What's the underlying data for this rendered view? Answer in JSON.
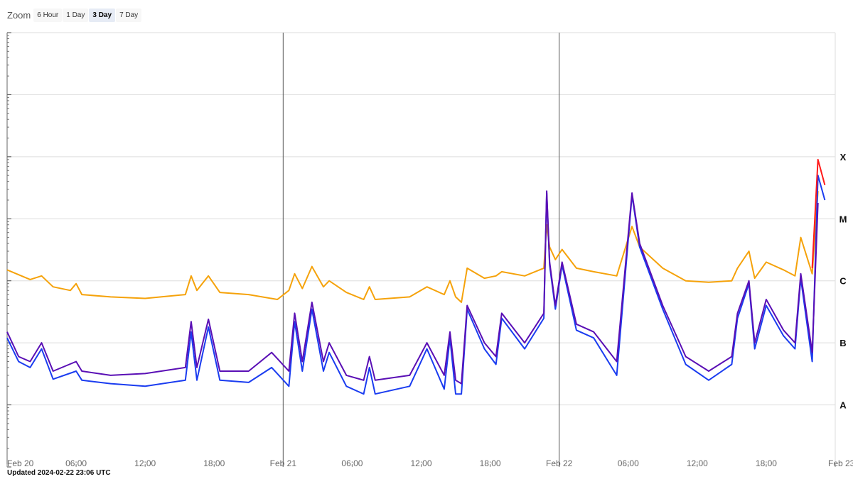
{
  "zoom": {
    "label": "Zoom",
    "buttons": [
      "6 Hour",
      "1 Day",
      "3 Day",
      "7 Day"
    ],
    "active": "3 Day"
  },
  "updated": "Updated 2024-02-22 23:06 UTC",
  "colors": {
    "long_channel": "#f5a20a",
    "short_channel": "#5a0fb5",
    "short_channel_2": "#1a3cf0",
    "latest_long": "#ff1a1a",
    "grid": "#dddddd",
    "day_line": "#555555"
  },
  "chart_data": {
    "type": "line",
    "x_range": [
      "2024-02-20T00:00",
      "2024-02-23T00:00"
    ],
    "y_scale": "log",
    "ylim": [
      1e-09,
      0.01
    ],
    "grid": true,
    "x_ticks": [
      {
        "t": "2024-02-20T00:00",
        "label": "Feb 20"
      },
      {
        "t": "2024-02-20T06:00",
        "label": "06:00"
      },
      {
        "t": "2024-02-20T12:00",
        "label": "12:00"
      },
      {
        "t": "2024-02-20T18:00",
        "label": "18:00"
      },
      {
        "t": "2024-02-21T00:00",
        "label": "Feb 21"
      },
      {
        "t": "2024-02-21T06:00",
        "label": "06:00"
      },
      {
        "t": "2024-02-21T12:00",
        "label": "12:00"
      },
      {
        "t": "2024-02-21T18:00",
        "label": "18:00"
      },
      {
        "t": "2024-02-22T00:00",
        "label": "Feb 22"
      },
      {
        "t": "2024-02-22T06:00",
        "label": "06:00"
      },
      {
        "t": "2024-02-22T12:00",
        "label": "12:00"
      },
      {
        "t": "2024-02-22T18:00",
        "label": "18:00"
      },
      {
        "t": "2024-02-23T00:00",
        "label": "Feb 23"
      }
    ],
    "day_lines": [
      "2024-02-21T00:00",
      "2024-02-22T00:00"
    ],
    "class_labels": [
      {
        "label": "X",
        "value": 0.0001
      },
      {
        "label": "M",
        "value": 1e-05
      },
      {
        "label": "C",
        "value": 1e-06
      },
      {
        "label": "B",
        "value": 1e-07
      },
      {
        "label": "A",
        "value": 1e-08
      }
    ],
    "series": [
      {
        "key": "long",
        "points": [
          [
            "2024-02-20T00:00",
            1.5e-06
          ],
          [
            "2024-02-20T02:00",
            1.05e-06
          ],
          [
            "2024-02-20T03:00",
            1.2e-06
          ],
          [
            "2024-02-20T04:00",
            8e-07
          ],
          [
            "2024-02-20T05:30",
            7e-07
          ],
          [
            "2024-02-20T06:00",
            9e-07
          ],
          [
            "2024-02-20T06:30",
            6e-07
          ],
          [
            "2024-02-20T09:00",
            5.5e-07
          ],
          [
            "2024-02-20T12:00",
            5.2e-07
          ],
          [
            "2024-02-20T15:30",
            6e-07
          ],
          [
            "2024-02-20T16:00",
            1.2e-06
          ],
          [
            "2024-02-20T16:30",
            7e-07
          ],
          [
            "2024-02-20T17:30",
            1.2e-06
          ],
          [
            "2024-02-20T18:30",
            6.5e-07
          ],
          [
            "2024-02-20T21:00",
            6e-07
          ],
          [
            "2024-02-20T23:30",
            5e-07
          ],
          [
            "2024-02-21T00:30",
            7e-07
          ],
          [
            "2024-02-21T01:00",
            1.3e-06
          ],
          [
            "2024-02-21T01:40",
            7.5e-07
          ],
          [
            "2024-02-21T02:30",
            1.7e-06
          ],
          [
            "2024-02-21T03:30",
            8e-07
          ],
          [
            "2024-02-21T04:00",
            1e-06
          ],
          [
            "2024-02-21T05:30",
            6.5e-07
          ],
          [
            "2024-02-21T07:00",
            5e-07
          ],
          [
            "2024-02-21T07:30",
            8e-07
          ],
          [
            "2024-02-21T08:00",
            5e-07
          ],
          [
            "2024-02-21T11:00",
            5.5e-07
          ],
          [
            "2024-02-21T12:30",
            8e-07
          ],
          [
            "2024-02-21T14:00",
            6e-07
          ],
          [
            "2024-02-21T14:30",
            1e-06
          ],
          [
            "2024-02-21T15:00",
            5.5e-07
          ],
          [
            "2024-02-21T15:30",
            4.5e-07
          ],
          [
            "2024-02-21T16:00",
            1.6e-06
          ],
          [
            "2024-02-21T17:30",
            1.1e-06
          ],
          [
            "2024-02-21T18:30",
            1.2e-06
          ],
          [
            "2024-02-21T19:00",
            1.4e-06
          ],
          [
            "2024-02-21T21:00",
            1.2e-06
          ],
          [
            "2024-02-21T22:40",
            1.6e-06
          ],
          [
            "2024-02-21T22:55",
            8e-06
          ],
          [
            "2024-02-21T23:10",
            3.5e-06
          ],
          [
            "2024-02-21T23:40",
            2.2e-06
          ],
          [
            "2024-02-22T00:15",
            3.2e-06
          ],
          [
            "2024-02-22T01:30",
            1.6e-06
          ],
          [
            "2024-02-22T03:00",
            1.4e-06
          ],
          [
            "2024-02-22T05:00",
            1.2e-06
          ],
          [
            "2024-02-22T06:20",
            7.5e-06
          ],
          [
            "2024-02-22T07:00",
            3.5e-06
          ],
          [
            "2024-02-22T09:00",
            1.6e-06
          ],
          [
            "2024-02-22T11:00",
            1e-06
          ],
          [
            "2024-02-22T13:00",
            9.5e-07
          ],
          [
            "2024-02-22T15:00",
            1e-06
          ],
          [
            "2024-02-22T15:30",
            1.6e-06
          ],
          [
            "2024-02-22T16:30",
            3e-06
          ],
          [
            "2024-02-22T17:00",
            1.1e-06
          ],
          [
            "2024-02-22T18:00",
            2e-06
          ],
          [
            "2024-02-22T19:30",
            1.5e-06
          ],
          [
            "2024-02-22T20:30",
            1.2e-06
          ],
          [
            "2024-02-22T21:00",
            5e-06
          ],
          [
            "2024-02-22T22:00",
            1.3e-06
          ],
          [
            "2024-02-22T22:30",
            2.8e-05
          ]
        ]
      },
      {
        "key": "short",
        "points": [
          [
            "2024-02-20T00:00",
            1.5e-07
          ],
          [
            "2024-02-20T01:00",
            6e-08
          ],
          [
            "2024-02-20T02:00",
            5e-08
          ],
          [
            "2024-02-20T03:00",
            1e-07
          ],
          [
            "2024-02-20T04:00",
            3.5e-08
          ],
          [
            "2024-02-20T06:00",
            5e-08
          ],
          [
            "2024-02-20T06:30",
            3.5e-08
          ],
          [
            "2024-02-20T09:00",
            3e-08
          ],
          [
            "2024-02-20T12:00",
            3.2e-08
          ],
          [
            "2024-02-20T15:30",
            4e-08
          ],
          [
            "2024-02-20T16:00",
            2.2e-07
          ],
          [
            "2024-02-20T16:30",
            4e-08
          ],
          [
            "2024-02-20T17:30",
            2.4e-07
          ],
          [
            "2024-02-20T18:30",
            3.5e-08
          ],
          [
            "2024-02-20T21:00",
            3.5e-08
          ],
          [
            "2024-02-20T23:00",
            7e-08
          ],
          [
            "2024-02-21T00:30",
            3.5e-08
          ],
          [
            "2024-02-21T01:00",
            3e-07
          ],
          [
            "2024-02-21T01:40",
            5e-08
          ],
          [
            "2024-02-21T02:30",
            4.5e-07
          ],
          [
            "2024-02-21T03:30",
            5e-08
          ],
          [
            "2024-02-21T04:00",
            1e-07
          ],
          [
            "2024-02-21T05:30",
            3e-08
          ],
          [
            "2024-02-21T07:00",
            2.5e-08
          ],
          [
            "2024-02-21T07:30",
            6e-08
          ],
          [
            "2024-02-21T08:00",
            2.5e-08
          ],
          [
            "2024-02-21T11:00",
            3e-08
          ],
          [
            "2024-02-21T12:30",
            1e-07
          ],
          [
            "2024-02-21T14:00",
            3e-08
          ],
          [
            "2024-02-21T14:30",
            1.5e-07
          ],
          [
            "2024-02-21T15:00",
            2.5e-08
          ],
          [
            "2024-02-21T15:30",
            2.2e-08
          ],
          [
            "2024-02-21T16:00",
            4e-07
          ],
          [
            "2024-02-21T17:30",
            1e-07
          ],
          [
            "2024-02-21T18:30",
            6e-08
          ],
          [
            "2024-02-21T19:00",
            3e-07
          ],
          [
            "2024-02-21T21:00",
            1e-07
          ],
          [
            "2024-02-21T22:40",
            3e-07
          ],
          [
            "2024-02-21T22:55",
            2.8e-05
          ],
          [
            "2024-02-21T23:10",
            2e-06
          ],
          [
            "2024-02-21T23:40",
            4e-07
          ],
          [
            "2024-02-22T00:15",
            2e-06
          ],
          [
            "2024-02-22T01:30",
            2e-07
          ],
          [
            "2024-02-22T03:00",
            1.5e-07
          ],
          [
            "2024-02-22T05:00",
            5e-08
          ],
          [
            "2024-02-22T06:20",
            2.6e-05
          ],
          [
            "2024-02-22T07:00",
            4e-06
          ],
          [
            "2024-02-22T09:00",
            4e-07
          ],
          [
            "2024-02-22T11:00",
            6e-08
          ],
          [
            "2024-02-22T13:00",
            3.5e-08
          ],
          [
            "2024-02-22T15:00",
            6e-08
          ],
          [
            "2024-02-22T15:30",
            3e-07
          ],
          [
            "2024-02-22T16:30",
            1e-06
          ],
          [
            "2024-02-22T17:00",
            1e-07
          ],
          [
            "2024-02-22T18:00",
            5e-07
          ],
          [
            "2024-02-22T19:30",
            1.6e-07
          ],
          [
            "2024-02-22T20:30",
            1e-07
          ],
          [
            "2024-02-22T21:00",
            1.3e-06
          ],
          [
            "2024-02-22T22:00",
            7e-08
          ],
          [
            "2024-02-22T22:30",
            1.8e-05
          ]
        ]
      },
      {
        "key": "short2",
        "points": [
          [
            "2024-02-20T00:00",
            1.2e-07
          ],
          [
            "2024-02-20T01:00",
            5e-08
          ],
          [
            "2024-02-20T02:00",
            4e-08
          ],
          [
            "2024-02-20T03:00",
            8e-08
          ],
          [
            "2024-02-20T04:00",
            2.6e-08
          ],
          [
            "2024-02-20T06:00",
            3.5e-08
          ],
          [
            "2024-02-20T06:30",
            2.5e-08
          ],
          [
            "2024-02-20T09:00",
            2.2e-08
          ],
          [
            "2024-02-20T12:00",
            2e-08
          ],
          [
            "2024-02-20T15:30",
            2.5e-08
          ],
          [
            "2024-02-20T16:00",
            1.5e-07
          ],
          [
            "2024-02-20T16:30",
            2.5e-08
          ],
          [
            "2024-02-20T17:30",
            1.8e-07
          ],
          [
            "2024-02-20T18:30",
            2.5e-08
          ],
          [
            "2024-02-20T21:00",
            2.3e-08
          ],
          [
            "2024-02-20T23:00",
            4e-08
          ],
          [
            "2024-02-21T00:30",
            2e-08
          ],
          [
            "2024-02-21T01:00",
            2.2e-07
          ],
          [
            "2024-02-21T01:40",
            3.5e-08
          ],
          [
            "2024-02-21T02:30",
            3.5e-07
          ],
          [
            "2024-02-21T03:30",
            3.5e-08
          ],
          [
            "2024-02-21T04:00",
            7e-08
          ],
          [
            "2024-02-21T05:30",
            2e-08
          ],
          [
            "2024-02-21T07:00",
            1.5e-08
          ],
          [
            "2024-02-21T07:30",
            4e-08
          ],
          [
            "2024-02-21T08:00",
            1.5e-08
          ],
          [
            "2024-02-21T11:00",
            2e-08
          ],
          [
            "2024-02-21T12:30",
            8e-08
          ],
          [
            "2024-02-21T14:00",
            1.8e-08
          ],
          [
            "2024-02-21T14:30",
            1.2e-07
          ],
          [
            "2024-02-21T15:00",
            1.5e-08
          ],
          [
            "2024-02-21T15:30",
            1.5e-08
          ],
          [
            "2024-02-21T16:00",
            3.5e-07
          ],
          [
            "2024-02-21T17:30",
            8e-08
          ],
          [
            "2024-02-21T18:30",
            4.5e-08
          ],
          [
            "2024-02-21T19:00",
            2.5e-07
          ],
          [
            "2024-02-21T21:00",
            8e-08
          ],
          [
            "2024-02-21T22:40",
            2.5e-07
          ],
          [
            "2024-02-21T22:55",
            2.6e-05
          ],
          [
            "2024-02-21T23:10",
            1.8e-06
          ],
          [
            "2024-02-21T23:40",
            3.5e-07
          ],
          [
            "2024-02-22T00:15",
            1.8e-06
          ],
          [
            "2024-02-22T01:30",
            1.6e-07
          ],
          [
            "2024-02-22T03:00",
            1.2e-07
          ],
          [
            "2024-02-22T05:00",
            3e-08
          ],
          [
            "2024-02-22T06:20",
            2.4e-05
          ],
          [
            "2024-02-22T07:00",
            3.5e-06
          ],
          [
            "2024-02-22T09:00",
            3.5e-07
          ],
          [
            "2024-02-22T11:00",
            4.5e-08
          ],
          [
            "2024-02-22T13:00",
            2.5e-08
          ],
          [
            "2024-02-22T15:00",
            4.5e-08
          ],
          [
            "2024-02-22T15:30",
            2.5e-07
          ],
          [
            "2024-02-22T16:30",
            9e-07
          ],
          [
            "2024-02-22T17:00",
            8e-08
          ],
          [
            "2024-02-22T18:00",
            4e-07
          ],
          [
            "2024-02-22T19:30",
            1.3e-07
          ],
          [
            "2024-02-22T20:30",
            8e-08
          ],
          [
            "2024-02-22T21:00",
            1.1e-06
          ],
          [
            "2024-02-22T22:00",
            5e-08
          ],
          [
            "2024-02-22T22:30",
            5e-05
          ],
          [
            "2024-02-22T23:06",
            2e-05
          ]
        ]
      },
      {
        "key": "latest_long",
        "points": [
          [
            "2024-02-22T22:00",
            1.6e-06
          ],
          [
            "2024-02-22T22:30",
            9e-05
          ],
          [
            "2024-02-22T23:06",
            3.5e-05
          ]
        ]
      }
    ]
  }
}
